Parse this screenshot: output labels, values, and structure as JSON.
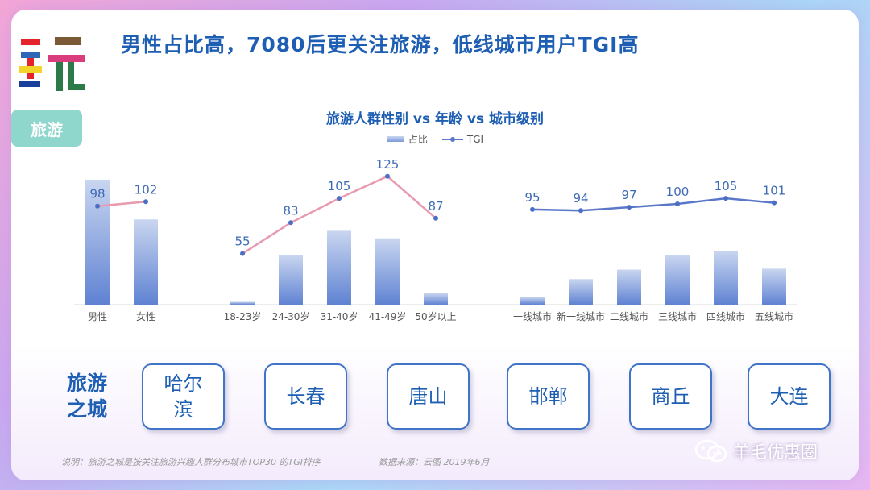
{
  "header": {
    "title": "男性占比高，7080后更关注旅游，低线城市用户TGI高",
    "category": "旅游"
  },
  "chart_data": {
    "type": "bar+line",
    "title": "旅游人群性别 vs 年龄 vs 城市级别",
    "legend": [
      "占比",
      "TGI"
    ],
    "legend_position": "top",
    "groups": [
      {
        "name": "gender",
        "categories": [
          "男性",
          "女性"
        ],
        "share_percent": [
          66,
          45
        ],
        "tgi": [
          98,
          102
        ]
      },
      {
        "name": "age",
        "categories": [
          "18-23岁",
          "24-30岁",
          "31-40岁",
          "41-49岁",
          "50岁以上"
        ],
        "share_percent": [
          1.5,
          26,
          39,
          35,
          6
        ],
        "tgi": [
          55,
          83,
          105,
          125,
          87
        ]
      },
      {
        "name": "city_tier",
        "categories": [
          "一线城市",
          "新一线城市",
          "二线城市",
          "三线城市",
          "四线城市",
          "五线城市"
        ],
        "share_percent": [
          4,
          13.5,
          18.5,
          26,
          28.5,
          19
        ],
        "tgi": [
          95,
          94,
          97,
          100,
          105,
          101
        ]
      }
    ]
  },
  "cities": {
    "label": "旅游之城",
    "items": [
      "哈尔滨",
      "长春",
      "唐山",
      "邯郸",
      "商丘",
      "大连"
    ]
  },
  "footer": {
    "note": "说明：旅游之城是按关注旅游兴趣人群分布城市TOP30 的TGI排序",
    "source": "数据来源：云图  2019年6月",
    "watermark": "羊毛优惠圈"
  },
  "colors": {
    "bar_top": "#c9d6f0",
    "bar_bottom": "#5f82d2",
    "tgi_line_age": "#e79ab0",
    "tgi_line_city": "#5b78c8",
    "title_blue": "#1e5fb3",
    "badge": "#8fd6cc"
  }
}
